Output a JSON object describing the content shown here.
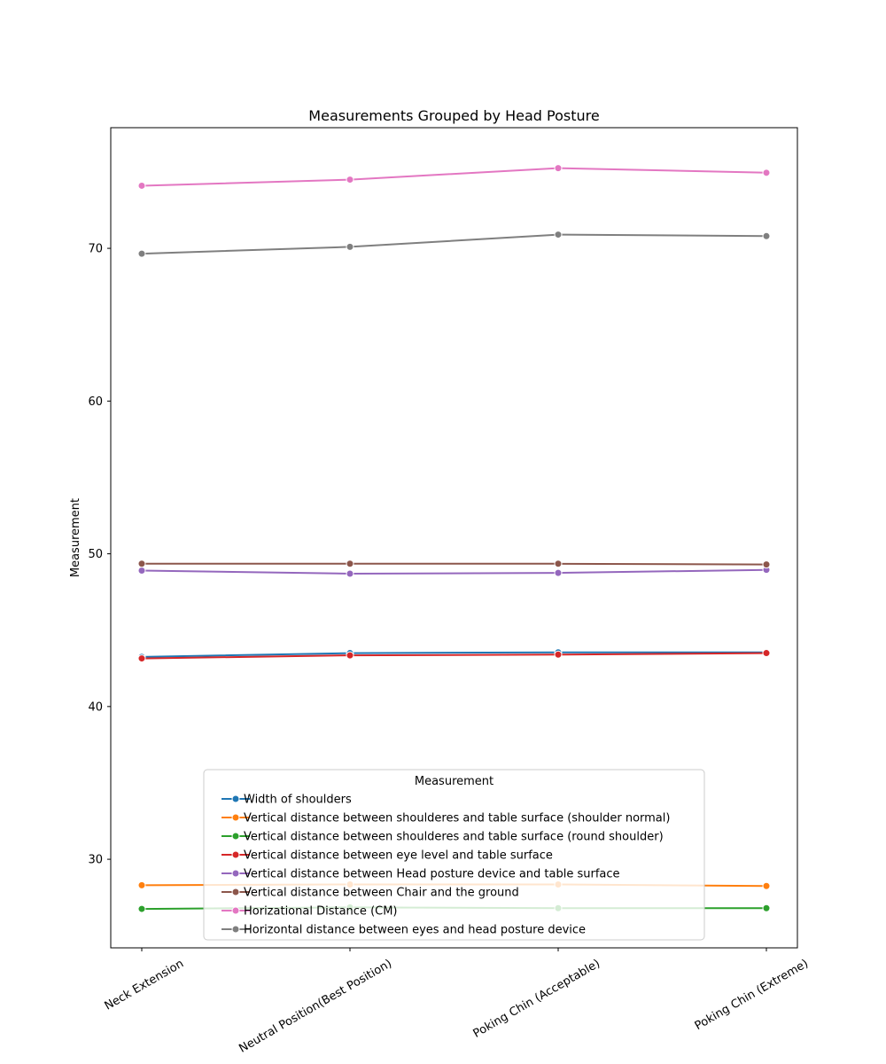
{
  "chart_data": {
    "type": "line",
    "title": "Measurements Grouped by Head Posture",
    "xlabel": "",
    "ylabel": "Measurement",
    "categories": [
      "Neck Extension",
      "Neutral Position(Best Position)",
      "Poking Chin (Acceptable)",
      "Poking Chin (Extreme)"
    ],
    "ylim": [
      24.2,
      77.9
    ],
    "yticks": [
      30,
      40,
      50,
      60,
      70
    ],
    "grid": false,
    "legend": {
      "title": "Measurement",
      "placement": "lower center"
    },
    "series": [
      {
        "name": "Width of shoulders",
        "color": "#1f77b4",
        "values": [
          43.25,
          43.5,
          43.55,
          43.55
        ]
      },
      {
        "name": "Vertical distance between shoulderes and table surface (shoulder normal)",
        "color": "#ff7f0e",
        "values": [
          28.3,
          28.35,
          28.35,
          28.25
        ]
      },
      {
        "name": "Vertical distance between shoulderes and table surface (round shoulder)",
        "color": "#2ca02c",
        "values": [
          26.75,
          26.85,
          26.8,
          26.8
        ]
      },
      {
        "name": "Vertical distance between eye level and table surface",
        "color": "#d62728",
        "values": [
          43.15,
          43.35,
          43.4,
          43.5
        ]
      },
      {
        "name": "Vertical distance between Head posture device and table surface",
        "color": "#9467bd",
        "values": [
          48.9,
          48.7,
          48.75,
          48.95
        ]
      },
      {
        "name": "Vertical distance between Chair and the ground",
        "color": "#8c564b",
        "values": [
          49.35,
          49.35,
          49.35,
          49.3
        ]
      },
      {
        "name": "Horizational Distance (CM)",
        "color": "#e377c2",
        "values": [
          74.1,
          74.5,
          75.25,
          74.95
        ]
      },
      {
        "name": "Horizontal distance between eyes and head posture device",
        "color": "#7f7f7f",
        "values": [
          69.65,
          70.1,
          70.9,
          70.8
        ]
      }
    ]
  }
}
